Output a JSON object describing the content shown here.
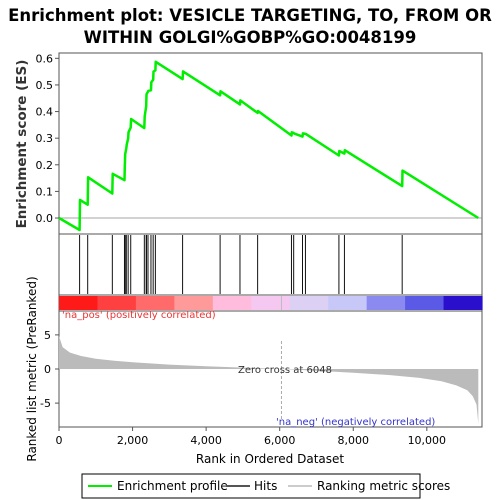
{
  "chart_data": {
    "type": "line",
    "title_lines": [
      "Enrichment plot: VESICLE TARGETING, TO, FROM OR",
      "WITHIN GOLGI%GOBP%GO:0048199"
    ],
    "xlabel": "Rank in Ordered Dataset",
    "es_ylabel": "Enrichment score (ES)",
    "rank_ylabel": "Ranked list metric (PreRanked)",
    "xlim": [
      0,
      11500
    ],
    "es_ylim": [
      -0.06,
      0.62
    ],
    "rank_ylim": [
      -8.5,
      8.5
    ],
    "x_ticks": [
      0,
      2000,
      4000,
      6000,
      8000,
      10000
    ],
    "x_tick_labels": [
      "0",
      "2,000",
      "4,000",
      "6,000",
      "8,000",
      "10,000"
    ],
    "es_ticks": [
      0.0,
      0.1,
      0.2,
      0.3,
      0.4,
      0.5,
      0.6
    ],
    "es_tick_labels": [
      "0.0",
      "0.1",
      "0.2",
      "0.3",
      "0.4",
      "0.5",
      "0.6"
    ],
    "rank_ticks": [
      5,
      0,
      -5
    ],
    "rank_tick_labels": [
      "5",
      "0",
      "-5"
    ],
    "enrichment_profile": {
      "name": "Enrichment profile",
      "color": "#00ee00",
      "x": [
        0,
        560,
        570,
        780,
        790,
        1450,
        1460,
        1780,
        1790,
        1800,
        1830,
        1840,
        1880,
        1890,
        1950,
        1960,
        2320,
        2330,
        2370,
        2380,
        2420,
        2430,
        2500,
        2510,
        2560,
        2570,
        2620,
        2630,
        3360,
        3370,
        4380,
        4390,
        4920,
        4930,
        5400,
        5410,
        6320,
        6330,
        6380,
        6390,
        6620,
        6630,
        6700,
        6710,
        7610,
        7620,
        7760,
        7770,
        9330,
        9340,
        11400
      ],
      "y": [
        0.0,
        -0.045,
        0.068,
        0.05,
        0.153,
        0.092,
        0.166,
        0.142,
        0.195,
        0.24,
        0.262,
        0.275,
        0.3,
        0.322,
        0.34,
        0.372,
        0.338,
        0.382,
        0.42,
        0.465,
        0.475,
        0.478,
        0.48,
        0.51,
        0.52,
        0.55,
        0.555,
        0.587,
        0.522,
        0.551,
        0.461,
        0.476,
        0.427,
        0.442,
        0.395,
        0.402,
        0.31,
        0.322,
        0.32,
        0.318,
        0.306,
        0.318,
        0.316,
        0.316,
        0.235,
        0.252,
        0.242,
        0.255,
        0.12,
        0.178,
        0.0
      ]
    },
    "hits": [
      560,
      780,
      1450,
      1780,
      1800,
      1830,
      1880,
      1950,
      2320,
      2370,
      2380,
      2420,
      2500,
      2560,
      2620,
      3360,
      4380,
      4920,
      5400,
      6320,
      6380,
      6620,
      6700,
      7610,
      7760,
      9330
    ],
    "ranked_metric_shape": {
      "color": "#bbbbbb",
      "x": [
        0,
        100,
        300,
        600,
        1000,
        1500,
        2000,
        3000,
        4000,
        5000,
        6048,
        7000,
        8000,
        9000,
        9800,
        10400,
        10800,
        11100,
        11250,
        11350,
        11400
      ],
      "y": [
        4.8,
        3.2,
        2.4,
        1.9,
        1.5,
        1.2,
        1.0,
        0.65,
        0.4,
        0.2,
        0.0,
        -0.25,
        -0.55,
        -0.9,
        -1.3,
        -1.8,
        -2.4,
        -3.1,
        -4.0,
        -5.2,
        -8.0
      ]
    },
    "heatmap_colors": [
      "#ff1a1a",
      "#ff4040",
      "#ff6a6a",
      "#ff9a9a",
      "#ffbcdc",
      "#f4c8f0",
      "#dcd0f4",
      "#c8c8f8",
      "#8a8af0",
      "#5a5ae6",
      "#2a10cc"
    ],
    "annotations": {
      "pos_label": "'na_pos' (positively correlated)",
      "neg_label": "'na_neg' (negatively correlated)",
      "zero_cross": "Zero cross at 6048",
      "pos_color": "#ee3333",
      "neg_color": "#3333cc"
    },
    "legend": [
      "Enrichment profile",
      "Hits",
      "Ranking metric scores"
    ]
  }
}
